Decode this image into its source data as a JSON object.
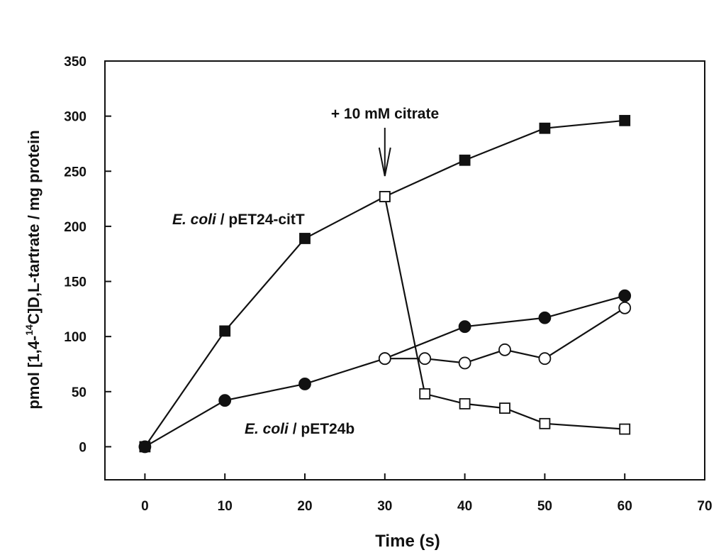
{
  "chart_data": {
    "type": "line",
    "xlabel": "Time (s)",
    "ylabel_parts": {
      "prefix": "pmol [1,4-",
      "superscript": "14",
      "suffix": "C]D,L-tartrate / mg protein"
    },
    "xlim": [
      -5,
      70
    ],
    "ylim": [
      -30,
      350
    ],
    "x_ticks": [
      0,
      10,
      20,
      30,
      40,
      50,
      60,
      70
    ],
    "y_ticks": [
      0,
      50,
      100,
      150,
      200,
      250,
      300,
      350
    ],
    "grid": false,
    "series": [
      {
        "marker": "square-filled",
        "points": [
          [
            0,
            0
          ],
          [
            10,
            105
          ],
          [
            20,
            189
          ],
          [
            30,
            227
          ],
          [
            40,
            260
          ],
          [
            50,
            289
          ],
          [
            60,
            296
          ]
        ]
      },
      {
        "marker": "square-open",
        "points": [
          [
            30,
            227
          ],
          [
            35,
            48
          ],
          [
            40,
            39
          ],
          [
            45,
            35
          ],
          [
            50,
            21
          ],
          [
            60,
            16
          ]
        ]
      },
      {
        "marker": "circle-filled",
        "points": [
          [
            0,
            0
          ],
          [
            10,
            42
          ],
          [
            20,
            57
          ],
          [
            30,
            80
          ],
          [
            40,
            109
          ],
          [
            50,
            117
          ],
          [
            60,
            137
          ]
        ]
      },
      {
        "marker": "circle-open",
        "points": [
          [
            30,
            80
          ],
          [
            35,
            80
          ],
          [
            40,
            76
          ],
          [
            45,
            88
          ],
          [
            50,
            80
          ],
          [
            60,
            126
          ]
        ]
      }
    ],
    "annotations": {
      "citrate": {
        "text": "+ 10 mM citrate",
        "at_x": 30
      },
      "label_citT": {
        "strain": "E. coli",
        "plasmid": " / pET24-citT"
      },
      "label_pet24b": {
        "strain": "E. coli",
        "plasmid": " / pET24b"
      }
    },
    "colors": {
      "line": "#111111",
      "fill": "#111111",
      "open_fill": "#ffffff"
    }
  }
}
